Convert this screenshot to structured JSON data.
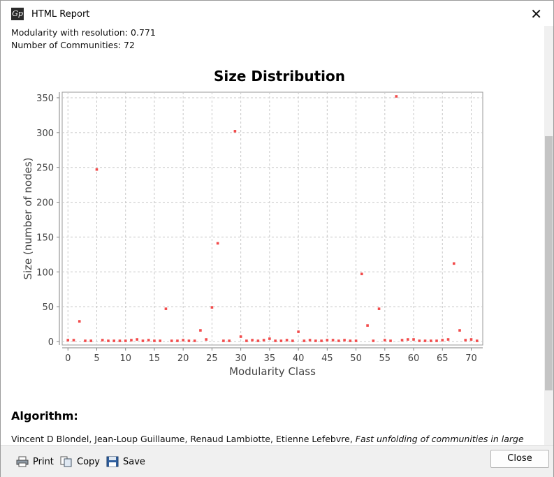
{
  "window": {
    "title": "HTML Report",
    "close_icon": "close-icon",
    "app_icon": "gephi-icon"
  },
  "report": {
    "modularity_line": "Modularity with resolution: 0.771",
    "communities_line": "Number of Communities: 72",
    "algorithm_heading": "Algorithm:",
    "algorithm_authors": "Vincent D Blondel, Jean-Loup Guillaume, Renaud Lambiotte, Etienne Lefebvre, ",
    "algorithm_title_italic": "Fast unfolding of communities in large"
  },
  "toolbar": {
    "print_label": "Print",
    "copy_label": "Copy",
    "save_label": "Save",
    "close_label": "Close"
  },
  "chart_data": {
    "type": "scatter",
    "title": "Size Distribution",
    "xlabel": "Modularity Class",
    "ylabel": "Size (number of nodes)",
    "xlim": [
      -1,
      72
    ],
    "ylim": [
      -5,
      358
    ],
    "xticks": [
      0,
      5,
      10,
      15,
      20,
      25,
      30,
      35,
      40,
      45,
      50,
      55,
      60,
      65,
      70
    ],
    "yticks": [
      0,
      50,
      100,
      150,
      200,
      250,
      300,
      350
    ],
    "grid": true,
    "point_color": "#f24b4b",
    "x": [
      0,
      1,
      2,
      3,
      4,
      5,
      6,
      7,
      8,
      9,
      10,
      11,
      12,
      13,
      14,
      15,
      16,
      17,
      18,
      19,
      20,
      21,
      22,
      23,
      24,
      25,
      26,
      27,
      28,
      29,
      30,
      31,
      32,
      33,
      34,
      35,
      36,
      37,
      38,
      39,
      40,
      41,
      42,
      43,
      44,
      45,
      46,
      47,
      48,
      49,
      50,
      51,
      52,
      53,
      54,
      55,
      56,
      57,
      58,
      59,
      60,
      61,
      62,
      63,
      64,
      65,
      66,
      67,
      68,
      69,
      70,
      71
    ],
    "y": [
      2,
      2,
      29,
      1,
      1,
      247,
      2,
      1,
      1,
      1,
      1,
      2,
      3,
      1,
      2,
      1,
      1,
      47,
      1,
      1,
      2,
      1,
      1,
      16,
      3,
      49,
      141,
      1,
      1,
      302,
      7,
      1,
      2,
      1,
      2,
      4,
      1,
      1,
      2,
      1,
      14,
      1,
      2,
      1,
      1,
      2,
      2,
      1,
      2,
      1,
      1,
      97,
      23,
      1,
      47,
      2,
      1,
      352,
      2,
      3,
      3,
      1,
      1,
      1,
      1,
      2,
      3,
      112,
      16,
      2,
      3,
      1
    ]
  }
}
